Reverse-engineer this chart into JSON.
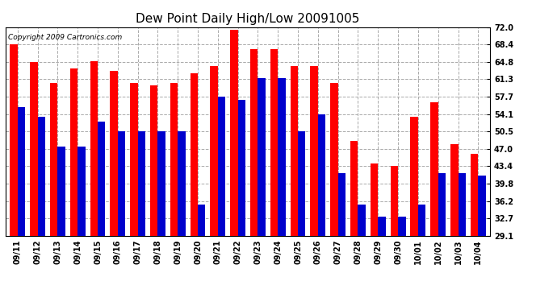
{
  "title": "Dew Point Daily High/Low 20091005",
  "copyright": "Copyright 2009 Cartronics.com",
  "dates": [
    "09/11",
    "09/12",
    "09/13",
    "09/14",
    "09/15",
    "09/16",
    "09/17",
    "09/18",
    "09/19",
    "09/20",
    "09/21",
    "09/22",
    "09/23",
    "09/24",
    "09/25",
    "09/26",
    "09/27",
    "09/28",
    "09/29",
    "09/30",
    "10/01",
    "10/02",
    "10/03",
    "10/04"
  ],
  "highs": [
    68.4,
    64.8,
    60.5,
    63.5,
    65.0,
    63.0,
    60.5,
    60.0,
    60.5,
    62.5,
    64.0,
    71.5,
    67.5,
    67.5,
    64.0,
    64.0,
    60.5,
    48.5,
    44.0,
    43.5,
    53.5,
    56.5,
    48.0,
    46.0
  ],
  "lows": [
    55.5,
    53.5,
    47.5,
    47.5,
    52.5,
    50.5,
    50.5,
    50.5,
    50.5,
    35.5,
    57.7,
    57.0,
    61.5,
    61.5,
    50.5,
    54.0,
    42.0,
    35.5,
    33.0,
    33.0,
    35.5,
    42.0,
    42.0,
    41.5
  ],
  "high_color": "#ff0000",
  "low_color": "#0000cc",
  "bg_color": "#ffffff",
  "plot_bg_color": "#ffffff",
  "grid_color": "#aaaaaa",
  "ylim_min": 29.1,
  "ylim_max": 72.0,
  "yticks": [
    29.1,
    32.7,
    36.2,
    39.8,
    43.4,
    47.0,
    50.5,
    54.1,
    57.7,
    61.3,
    64.8,
    68.4,
    72.0
  ],
  "bar_width": 0.38,
  "title_fontsize": 11,
  "tick_fontsize": 7,
  "copyright_fontsize": 6.5
}
